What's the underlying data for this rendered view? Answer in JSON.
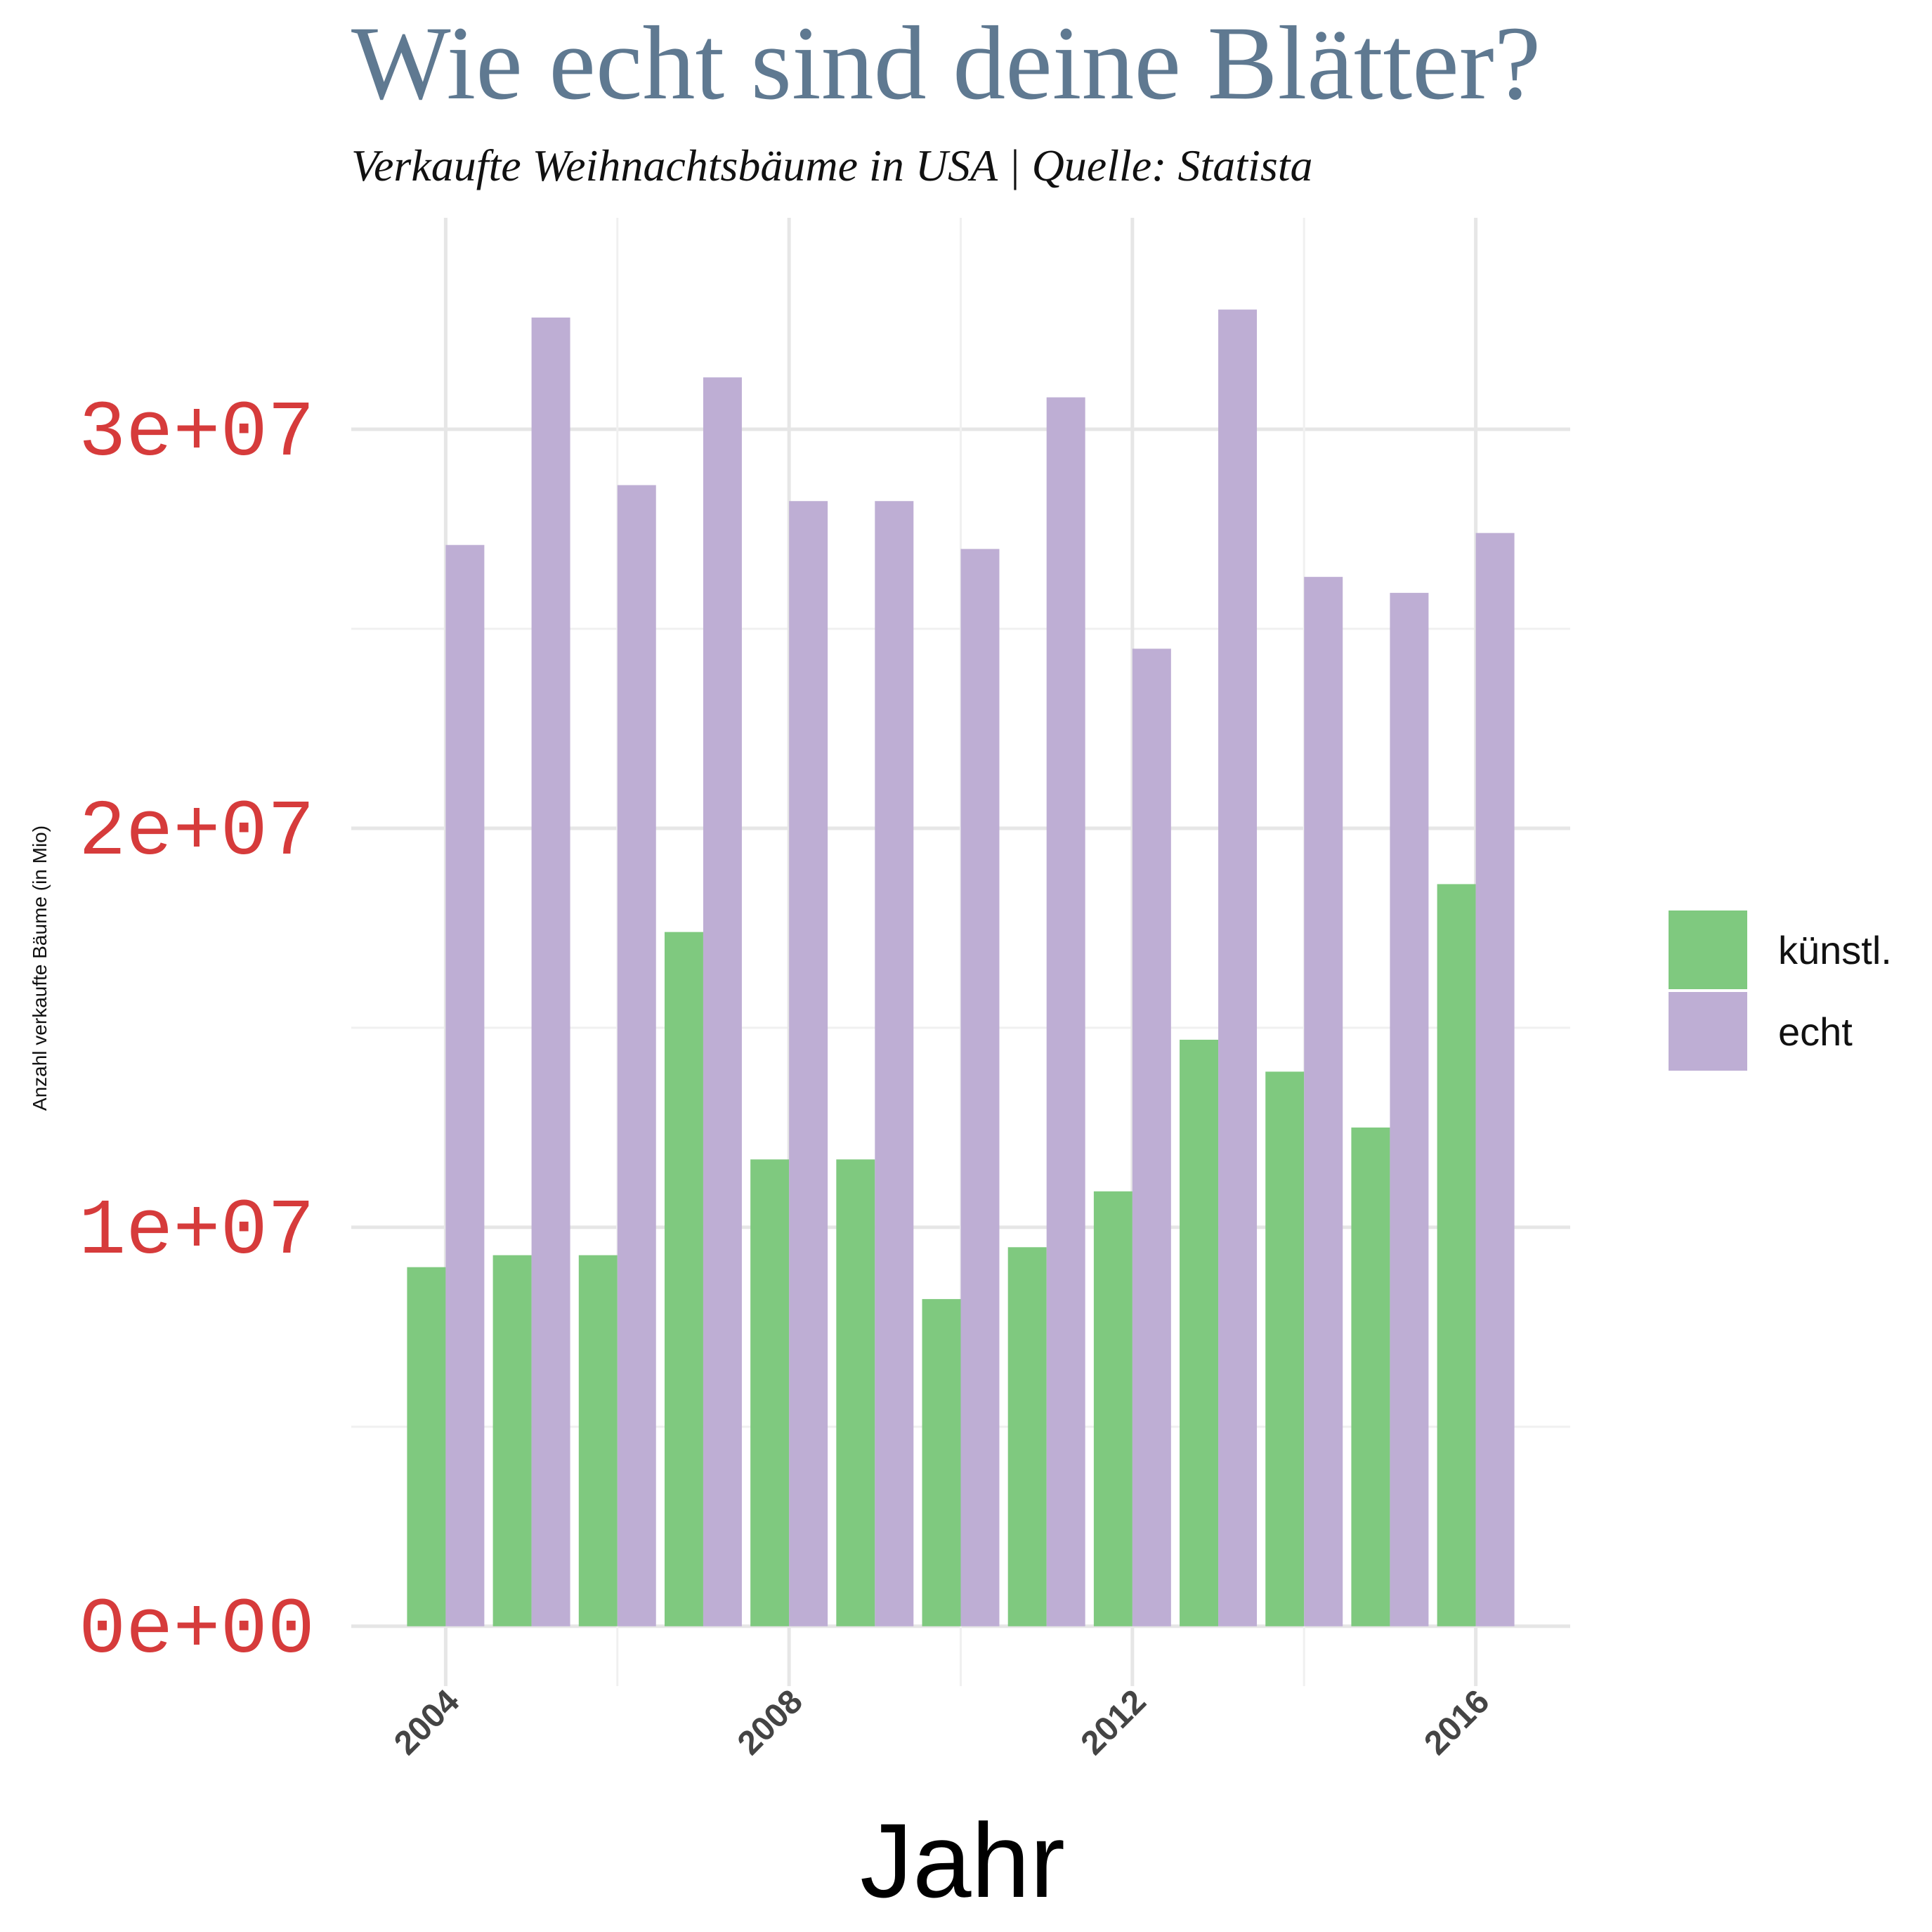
{
  "chart_data": {
    "type": "bar",
    "title": "Wie echt sind deine Blätter?",
    "subtitle": "Verkaufte Weihnachtsbäume in USA | Quelle: Statista",
    "xlabel": "Jahr",
    "ylabel": "Anzahl verkaufte Bäume (in Mio)",
    "categories": [
      2004,
      2005,
      2006,
      2007,
      2008,
      2009,
      2010,
      2011,
      2012,
      2013,
      2014,
      2015,
      2016
    ],
    "series": [
      {
        "name": "künstl.",
        "color": "#7fc97f",
        "values": [
          9000000,
          9300000,
          9300000,
          17400000,
          11700000,
          11700000,
          8200000,
          9500000,
          10900000,
          14700000,
          13900000,
          12500000,
          18600000
        ]
      },
      {
        "name": "echt",
        "color": "#beaed4",
        "values": [
          27100000,
          32800000,
          28600000,
          31300000,
          28200000,
          28200000,
          27000000,
          30800000,
          24500000,
          33000000,
          26300000,
          25900000,
          27400000
        ]
      }
    ],
    "ylim": [
      -1500000,
      35300000
    ],
    "xlim": [
      2002.9,
      2017.1
    ],
    "yticks": [
      0,
      10000000,
      20000000,
      30000000
    ],
    "ytick_labels": [
      "0e+00",
      "1e+07",
      "2e+07",
      "3e+07"
    ],
    "xticks": [
      2004,
      2008,
      2012,
      2016
    ],
    "xtick_labels": [
      "2004",
      "2008",
      "2012",
      "2016"
    ],
    "grid": true,
    "legend_position": "right"
  }
}
